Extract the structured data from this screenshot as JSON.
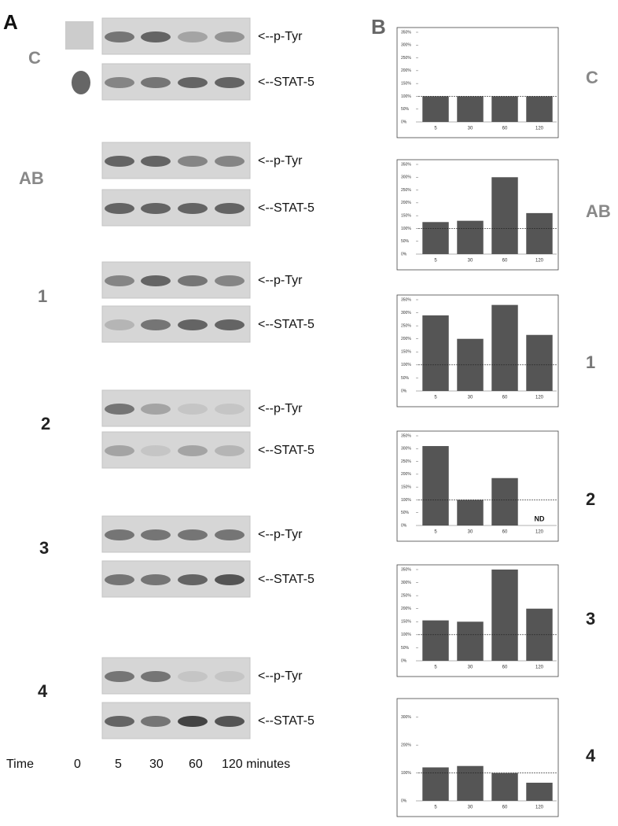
{
  "panels": {
    "a": "A",
    "b": "B"
  },
  "groups": [
    {
      "label": "C",
      "blots": [
        "<--p-Tyr",
        "<--STAT-5"
      ]
    },
    {
      "label": "AB",
      "blots": [
        "<--p-Tyr",
        "<--STAT-5"
      ]
    },
    {
      "label": "1",
      "blots": [
        "<--p-Tyr",
        "<--STAT-5"
      ]
    },
    {
      "label": "2",
      "blots": [
        "<--p-Tyr",
        "<--STAT-5"
      ]
    },
    {
      "label": "3",
      "blots": [
        "<--p-Tyr",
        "<--STAT-5"
      ]
    },
    {
      "label": "4",
      "blots": [
        "<--p-Tyr",
        "<--STAT-5"
      ]
    }
  ],
  "time": {
    "label": "Time",
    "points": [
      "0",
      "5",
      "30",
      "60",
      "120 minutes"
    ]
  },
  "chart_data": [
    {
      "type": "bar",
      "categories": [
        "5",
        "30",
        "60",
        "120"
      ],
      "values": [
        100,
        100,
        100,
        100
      ],
      "color": "#555555",
      "reference": 100,
      "ylim": [
        0,
        350
      ],
      "yticks": [
        {
          "value": 0,
          "label": "0%"
        },
        {
          "value": 50,
          "label": "50%"
        },
        {
          "value": 100,
          "label": "100%"
        },
        {
          "value": 150,
          "label": "150%"
        },
        {
          "value": 200,
          "label": "200%"
        },
        {
          "value": 250,
          "label": "250%"
        },
        {
          "value": 300,
          "label": "300%"
        },
        {
          "value": 350,
          "label": "350%"
        }
      ]
    },
    {
      "type": "bar",
      "categories": [
        "5",
        "30",
        "60",
        "120"
      ],
      "values": [
        125,
        130,
        300,
        160
      ],
      "color": "#555555",
      "reference": 100,
      "ylim": [
        0,
        350
      ],
      "yticks": [
        {
          "value": 0,
          "label": "0%"
        },
        {
          "value": 50,
          "label": "50%"
        },
        {
          "value": 100,
          "label": "100%"
        },
        {
          "value": 150,
          "label": "150%"
        },
        {
          "value": 200,
          "label": "200%"
        },
        {
          "value": 250,
          "label": "250%"
        },
        {
          "value": 300,
          "label": "300%"
        },
        {
          "value": 350,
          "label": "350%"
        }
      ]
    },
    {
      "type": "bar",
      "categories": [
        "5",
        "30",
        "60",
        "120"
      ],
      "values": [
        290,
        200,
        330,
        215
      ],
      "color": "#555555",
      "reference": 100,
      "ylim": [
        0,
        350
      ],
      "yticks": [
        {
          "value": 0,
          "label": "0%"
        },
        {
          "value": 50,
          "label": "50%"
        },
        {
          "value": 100,
          "label": "100%"
        },
        {
          "value": 150,
          "label": "150%"
        },
        {
          "value": 200,
          "label": "200%"
        },
        {
          "value": 250,
          "label": "250%"
        },
        {
          "value": 300,
          "label": "300%"
        },
        {
          "value": 350,
          "label": "350%"
        }
      ]
    },
    {
      "type": "bar",
      "categories": [
        "5",
        "30",
        "60",
        "120"
      ],
      "values": [
        310,
        100,
        185,
        null
      ],
      "color": "#555555",
      "reference": 100,
      "annotation": "ND",
      "ylim": [
        0,
        350
      ],
      "yticks": [
        {
          "value": 0,
          "label": "0%"
        },
        {
          "value": 50,
          "label": "50%"
        },
        {
          "value": 100,
          "label": "100%"
        },
        {
          "value": 150,
          "label": "150%"
        },
        {
          "value": 200,
          "label": "200%"
        },
        {
          "value": 250,
          "label": "250%"
        },
        {
          "value": 300,
          "label": "300%"
        },
        {
          "value": 350,
          "label": "350%"
        }
      ]
    },
    {
      "type": "bar",
      "categories": [
        "5",
        "30",
        "60",
        "120"
      ],
      "values": [
        155,
        150,
        350,
        200
      ],
      "color": "#555555",
      "reference": 100,
      "ylim": [
        0,
        350
      ],
      "yticks": [
        {
          "value": 0,
          "label": "0%"
        },
        {
          "value": 50,
          "label": "50%"
        },
        {
          "value": 100,
          "label": "100%"
        },
        {
          "value": 150,
          "label": "150%"
        },
        {
          "value": 200,
          "label": "200%"
        },
        {
          "value": 250,
          "label": "250%"
        },
        {
          "value": 300,
          "label": "300%"
        },
        {
          "value": 350,
          "label": "350%"
        }
      ]
    },
    {
      "type": "bar",
      "categories": [
        "5",
        "30",
        "60",
        "120"
      ],
      "values": [
        120,
        125,
        100,
        65
      ],
      "color": "#555555",
      "reference": 100,
      "ylim": [
        0,
        350
      ],
      "yticks": [
        {
          "value": 0,
          "label": "0%"
        },
        {
          "value": 100,
          "label": "100%"
        },
        {
          "value": 200,
          "label": "200%"
        },
        {
          "value": 300,
          "label": "300%"
        }
      ]
    }
  ]
}
